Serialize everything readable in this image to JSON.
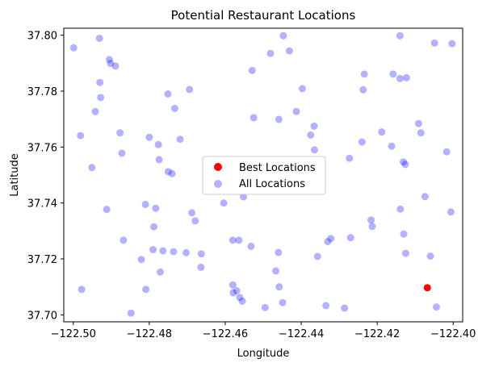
{
  "chart_data": {
    "type": "scatter",
    "title": "Potential Restaurant Locations",
    "xlabel": "Longitude",
    "ylabel": "Latitude",
    "xlim": [
      -122.5025,
      -122.3975
    ],
    "ylim": [
      37.6975,
      37.8025
    ],
    "xticks": [
      -122.5,
      -122.48,
      -122.46,
      -122.44,
      -122.42,
      -122.4
    ],
    "xtick_labels": [
      "−122.50",
      "−122.48",
      "−122.46",
      "−122.44",
      "−122.42",
      "−122.40"
    ],
    "yticks": [
      37.7,
      37.72,
      37.74,
      37.76,
      37.78,
      37.8
    ],
    "ytick_labels": [
      "37.70",
      "37.72",
      "37.74",
      "37.76",
      "37.78",
      "37.80"
    ],
    "grid": false,
    "legend_position": "center",
    "series": [
      {
        "name": "Best Locations",
        "color": "#ff0000",
        "alpha": 1.0,
        "points": [
          [
            -122.4068,
            37.7097
          ]
        ]
      },
      {
        "name": "All Locations",
        "color": "#0000ff",
        "alpha": 0.3,
        "points": [
          [
            -122.4999,
            37.7955
          ],
          [
            -122.4981,
            37.7641
          ],
          [
            -122.4978,
            37.7091
          ],
          [
            -122.4951,
            37.7527
          ],
          [
            -122.4942,
            37.7727
          ],
          [
            -122.4931,
            37.7989
          ],
          [
            -122.493,
            37.7831
          ],
          [
            -122.4928,
            37.7777
          ],
          [
            -122.4912,
            37.7377
          ],
          [
            -122.4905,
            37.7913
          ],
          [
            -122.4902,
            37.7899
          ],
          [
            -122.4889,
            37.789
          ],
          [
            -122.4877,
            37.7651
          ],
          [
            -122.4872,
            37.7578
          ],
          [
            -122.4868,
            37.7267
          ],
          [
            -122.4848,
            37.7006
          ],
          [
            -122.4821,
            37.7198
          ],
          [
            -122.481,
            37.7395
          ],
          [
            -122.4809,
            37.7091
          ],
          [
            -122.48,
            37.7635
          ],
          [
            -122.479,
            37.7233
          ],
          [
            -122.4788,
            37.7315
          ],
          [
            -122.4783,
            37.7381
          ],
          [
            -122.4776,
            37.7609
          ],
          [
            -122.4774,
            37.7555
          ],
          [
            -122.4771,
            37.7153
          ],
          [
            -122.4764,
            37.7229
          ],
          [
            -122.4751,
            37.779
          ],
          [
            -122.475,
            37.7512
          ],
          [
            -122.474,
            37.7505
          ],
          [
            -122.4736,
            37.7226
          ],
          [
            -122.4733,
            37.7738
          ],
          [
            -122.4719,
            37.7628
          ],
          [
            -122.4703,
            37.7222
          ],
          [
            -122.4694,
            37.7806
          ],
          [
            -122.4688,
            37.7365
          ],
          [
            -122.4679,
            37.7336
          ],
          [
            -122.4664,
            37.717
          ],
          [
            -122.4663,
            37.7218
          ],
          [
            -122.4604,
            37.74
          ],
          [
            -122.458,
            37.7267
          ],
          [
            -122.458,
            37.7107
          ],
          [
            -122.4579,
            37.7079
          ],
          [
            -122.457,
            37.7086
          ],
          [
            -122.4564,
            37.7267
          ],
          [
            -122.4562,
            37.7062
          ],
          [
            -122.4555,
            37.7049
          ],
          [
            -122.4552,
            37.7422
          ],
          [
            -122.4532,
            37.7245
          ],
          [
            -122.4529,
            37.7874
          ],
          [
            -122.4525,
            37.7705
          ],
          [
            -122.4495,
            37.7026
          ],
          [
            -122.4481,
            37.7935
          ],
          [
            -122.4467,
            37.7157
          ],
          [
            -122.446,
            37.7223
          ],
          [
            -122.4459,
            37.7699
          ],
          [
            -122.4458,
            37.71
          ],
          [
            -122.4449,
            37.7044
          ],
          [
            -122.4447,
            37.7998
          ],
          [
            -122.4431,
            37.7944
          ],
          [
            -122.4413,
            37.7727
          ],
          [
            -122.4397,
            37.7809
          ],
          [
            -122.4375,
            37.7643
          ],
          [
            -122.4366,
            37.7675
          ],
          [
            -122.4365,
            37.759
          ],
          [
            -122.4357,
            37.7209
          ],
          [
            -122.4335,
            37.7033
          ],
          [
            -122.433,
            37.7262
          ],
          [
            -122.4322,
            37.7273
          ],
          [
            -122.4286,
            37.7024
          ],
          [
            -122.4273,
            37.756
          ],
          [
            -122.427,
            37.7276
          ],
          [
            -122.424,
            37.7618
          ],
          [
            -122.4237,
            37.7805
          ],
          [
            -122.4234,
            37.7861
          ],
          [
            -122.4216,
            37.7339
          ],
          [
            -122.4213,
            37.7316
          ],
          [
            -122.4188,
            37.7654
          ],
          [
            -122.4162,
            37.7603
          ],
          [
            -122.4158,
            37.7861
          ],
          [
            -122.414,
            37.7998
          ],
          [
            -122.414,
            37.7845
          ],
          [
            -122.4139,
            37.7378
          ],
          [
            -122.4131,
            37.7547
          ],
          [
            -122.413,
            37.7289
          ],
          [
            -122.4126,
            37.7538
          ],
          [
            -122.4125,
            37.722
          ],
          [
            -122.4123,
            37.7848
          ],
          [
            -122.4091,
            37.7684
          ],
          [
            -122.4085,
            37.7651
          ],
          [
            -122.4074,
            37.7423
          ],
          [
            -122.406,
            37.721
          ],
          [
            -122.4049,
            37.7972
          ],
          [
            -122.4044,
            37.7028
          ],
          [
            -122.4017,
            37.7583
          ],
          [
            -122.4006,
            37.7368
          ],
          [
            -122.4003,
            37.797
          ]
        ]
      }
    ]
  }
}
